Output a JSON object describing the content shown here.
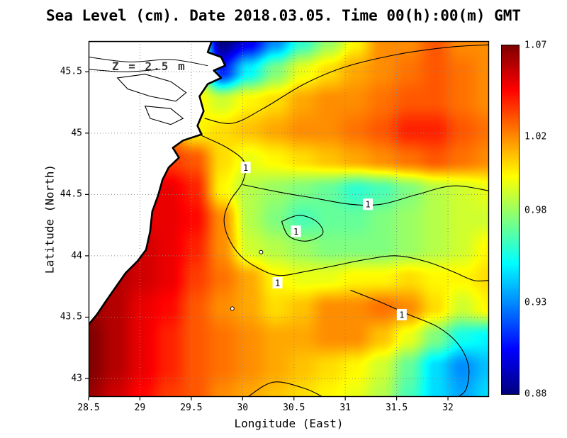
{
  "header": {
    "title": "Sea Level (cm). Date 2018.03.05. Time 00(h):00(m) GMT"
  },
  "annotation": {
    "depth_label": "Z = 2.5 m"
  },
  "axes": {
    "x": {
      "label": "Longitude (East)",
      "ticks": [
        "28.5",
        "29",
        "29.5",
        "30",
        "30.5",
        "31",
        "31.5",
        "32"
      ]
    },
    "y": {
      "label": "Latitude (North)",
      "ticks": [
        "43",
        "43.5",
        "44",
        "44.5",
        "45",
        "45.5"
      ]
    }
  },
  "colorbar": {
    "ticks": [
      "1.07",
      "1.02",
      "0.98",
      "0.93",
      "0.88"
    ],
    "min": 0.88,
    "max": 1.07
  },
  "chart_data": {
    "type": "heatmap",
    "title": "Sea Level (cm). Date 2018.03.05. Time 00(h):00(m) GMT",
    "xlabel": "Longitude (East)",
    "ylabel": "Latitude (North)",
    "x_range": [
      28.5,
      32.4
    ],
    "y_range": [
      42.85,
      45.75
    ],
    "value_range": [
      0.88,
      1.07
    ],
    "colormap": "jet",
    "grid_lons": [
      28.5,
      28.76,
      29.02,
      29.28,
      29.54,
      29.8,
      30.06,
      30.32,
      30.58,
      30.84,
      31.1,
      31.36,
      31.62,
      31.88,
      32.14,
      32.4
    ],
    "grid_lats": [
      45.75,
      45.51,
      45.27,
      45.03,
      44.78,
      44.54,
      44.3,
      44.06,
      43.82,
      43.58,
      43.33,
      43.09,
      42.85
    ],
    "values": [
      [
        1.02,
        1.02,
        1.02,
        1.02,
        1.0,
        0.88,
        0.9,
        0.93,
        0.96,
        0.98,
        1.0,
        1.02,
        1.02,
        1.03,
        1.02,
        1.02
      ],
      [
        1.02,
        1.02,
        1.02,
        1.02,
        1.0,
        0.91,
        0.95,
        0.975,
        0.995,
        1.005,
        1.015,
        1.02,
        1.025,
        1.03,
        1.025,
        1.02
      ],
      [
        1.02,
        1.02,
        1.02,
        1.01,
        1.0,
        0.99,
        1.0,
        1.005,
        1.015,
        1.02,
        1.02,
        1.025,
        1.03,
        1.03,
        1.025,
        1.02
      ],
      [
        1.03,
        1.03,
        1.03,
        1.02,
        1.0,
        1.005,
        1.01,
        1.015,
        1.02,
        1.02,
        1.025,
        1.03,
        1.04,
        1.04,
        1.03,
        1.025
      ],
      [
        1.04,
        1.04,
        1.04,
        1.035,
        1.03,
        1.005,
        0.995,
        1.0,
        1.005,
        1.01,
        1.015,
        1.02,
        1.025,
        1.03,
        1.025,
        1.02
      ],
      [
        1.05,
        1.05,
        1.05,
        1.05,
        1.04,
        1.0,
        0.985,
        0.98,
        0.975,
        0.97,
        0.96,
        0.965,
        0.975,
        0.985,
        0.99,
        0.995
      ],
      [
        1.05,
        1.05,
        1.05,
        1.05,
        1.045,
        1.02,
        0.985,
        0.975,
        0.965,
        0.97,
        0.97,
        0.975,
        0.98,
        0.985,
        0.99,
        0.99
      ],
      [
        1.055,
        1.055,
        1.055,
        1.05,
        1.04,
        1.02,
        0.99,
        0.985,
        0.98,
        0.975,
        0.975,
        0.975,
        0.98,
        0.985,
        0.99,
        1.0
      ],
      [
        1.06,
        1.06,
        1.055,
        1.05,
        1.035,
        1.025,
        1.015,
        1.0,
        0.995,
        0.995,
        1.0,
        1.0,
        1.005,
        1.0,
        1.0,
        1.005
      ],
      [
        1.065,
        1.06,
        1.05,
        1.045,
        1.03,
        1.02,
        1.015,
        1.005,
        1.01,
        1.02,
        1.02,
        1.025,
        1.02,
        1.005,
        0.99,
        1.0
      ],
      [
        1.07,
        1.06,
        1.05,
        1.04,
        1.03,
        1.025,
        1.02,
        1.015,
        1.015,
        1.02,
        1.02,
        1.01,
        0.995,
        0.975,
        0.955,
        0.95
      ],
      [
        1.07,
        1.06,
        1.05,
        1.04,
        1.03,
        1.025,
        1.02,
        1.015,
        1.01,
        1.005,
        1.0,
        0.99,
        0.97,
        0.945,
        0.93,
        0.94
      ],
      [
        1.065,
        1.055,
        1.045,
        1.035,
        1.03,
        1.02,
        1.015,
        1.01,
        1.005,
        1.0,
        0.995,
        0.985,
        0.965,
        0.945,
        0.935,
        0.945
      ]
    ],
    "map": {
      "contour_label": "1",
      "coastline": [
        [
          28.5,
          45.75
        ],
        [
          29.7,
          45.75
        ],
        [
          29.66,
          45.66
        ],
        [
          29.79,
          45.62
        ],
        [
          29.83,
          45.55
        ],
        [
          29.72,
          45.51
        ],
        [
          29.79,
          45.45
        ],
        [
          29.66,
          45.4
        ],
        [
          29.58,
          45.3
        ],
        [
          29.62,
          45.18
        ],
        [
          29.56,
          45.06
        ],
        [
          29.6,
          44.99
        ],
        [
          29.42,
          44.94
        ],
        [
          29.32,
          44.88
        ],
        [
          29.38,
          44.8
        ],
        [
          29.28,
          44.72
        ],
        [
          29.22,
          44.62
        ],
        [
          29.18,
          44.5
        ],
        [
          29.12,
          44.36
        ],
        [
          29.1,
          44.2
        ],
        [
          29.06,
          44.05
        ],
        [
          28.98,
          43.96
        ],
        [
          28.86,
          43.86
        ],
        [
          28.76,
          43.74
        ],
        [
          28.66,
          43.62
        ],
        [
          28.58,
          43.52
        ],
        [
          28.5,
          43.44
        ]
      ],
      "lakes": [
        [
          [
            28.78,
            45.45
          ],
          [
            29.05,
            45.48
          ],
          [
            29.3,
            45.42
          ],
          [
            29.45,
            45.33
          ],
          [
            29.35,
            45.26
          ],
          [
            29.1,
            45.3
          ],
          [
            28.88,
            45.36
          ],
          [
            28.78,
            45.45
          ]
        ],
        [
          [
            29.05,
            45.22
          ],
          [
            29.3,
            45.2
          ],
          [
            29.42,
            45.12
          ],
          [
            29.3,
            45.07
          ],
          [
            29.1,
            45.12
          ],
          [
            29.05,
            45.22
          ]
        ]
      ],
      "rivers": [
        [
          [
            28.5,
            45.62
          ],
          [
            28.9,
            45.58
          ],
          [
            29.3,
            45.6
          ],
          [
            29.66,
            45.55
          ]
        ],
        [
          [
            28.5,
            45.52
          ],
          [
            28.85,
            45.5
          ],
          [
            29.2,
            45.52
          ]
        ]
      ],
      "islands": [
        [
          30.18,
          44.03
        ],
        [
          29.9,
          43.57
        ]
      ],
      "contours": [
        {
          "points": [
            [
              29.63,
              45.12
            ],
            [
              29.9,
              45.08
            ],
            [
              30.2,
              45.2
            ],
            [
              30.6,
              45.4
            ],
            [
              31.0,
              45.54
            ],
            [
              31.5,
              45.64
            ],
            [
              32.0,
              45.7
            ],
            [
              32.4,
              45.72
            ]
          ],
          "labels": []
        },
        {
          "points": [
            [
              29.6,
              44.98
            ],
            [
              29.85,
              44.88
            ],
            [
              30.02,
              44.76
            ],
            [
              30.0,
              44.6
            ],
            [
              29.88,
              44.45
            ],
            [
              29.82,
              44.3
            ],
            [
              29.86,
              44.15
            ],
            [
              29.98,
              44.0
            ],
            [
              30.15,
              43.9
            ],
            [
              30.35,
              43.84
            ],
            [
              30.6,
              43.87
            ],
            [
              30.9,
              43.92
            ],
            [
              31.2,
              43.97
            ],
            [
              31.5,
              44.0
            ],
            [
              31.8,
              43.95
            ],
            [
              32.05,
              43.87
            ],
            [
              32.25,
              43.8
            ],
            [
              32.4,
              43.8
            ]
          ],
          "labels": [
            [
              30.03,
              44.72
            ],
            [
              30.34,
              43.78
            ]
          ]
        },
        {
          "points": [
            [
              30.0,
              44.58
            ],
            [
              30.35,
              44.52
            ],
            [
              30.7,
              44.47
            ],
            [
              31.05,
              44.42
            ],
            [
              31.35,
              44.42
            ],
            [
              31.7,
              44.5
            ],
            [
              32.05,
              44.57
            ],
            [
              32.4,
              44.53
            ]
          ],
          "labels": [
            [
              31.22,
              44.42
            ]
          ]
        },
        {
          "points": [
            [
              30.38,
              44.28
            ],
            [
              30.55,
              44.33
            ],
            [
              30.72,
              44.28
            ],
            [
              30.78,
              44.18
            ],
            [
              30.62,
              44.12
            ],
            [
              30.45,
              44.16
            ],
            [
              30.38,
              44.28
            ]
          ],
          "labels": [
            [
              30.52,
              44.2
            ]
          ]
        },
        {
          "points": [
            [
              31.05,
              43.72
            ],
            [
              31.35,
              43.62
            ],
            [
              31.62,
              43.52
            ],
            [
              31.9,
              43.42
            ],
            [
              32.1,
              43.28
            ],
            [
              32.2,
              43.1
            ],
            [
              32.18,
              42.92
            ],
            [
              32.1,
              42.85
            ]
          ],
          "labels": [
            [
              31.55,
              43.52
            ]
          ]
        },
        {
          "points": [
            [
              30.05,
              42.85
            ],
            [
              30.3,
              42.97
            ],
            [
              30.6,
              42.92
            ],
            [
              30.78,
              42.85
            ]
          ],
          "labels": []
        }
      ]
    }
  }
}
